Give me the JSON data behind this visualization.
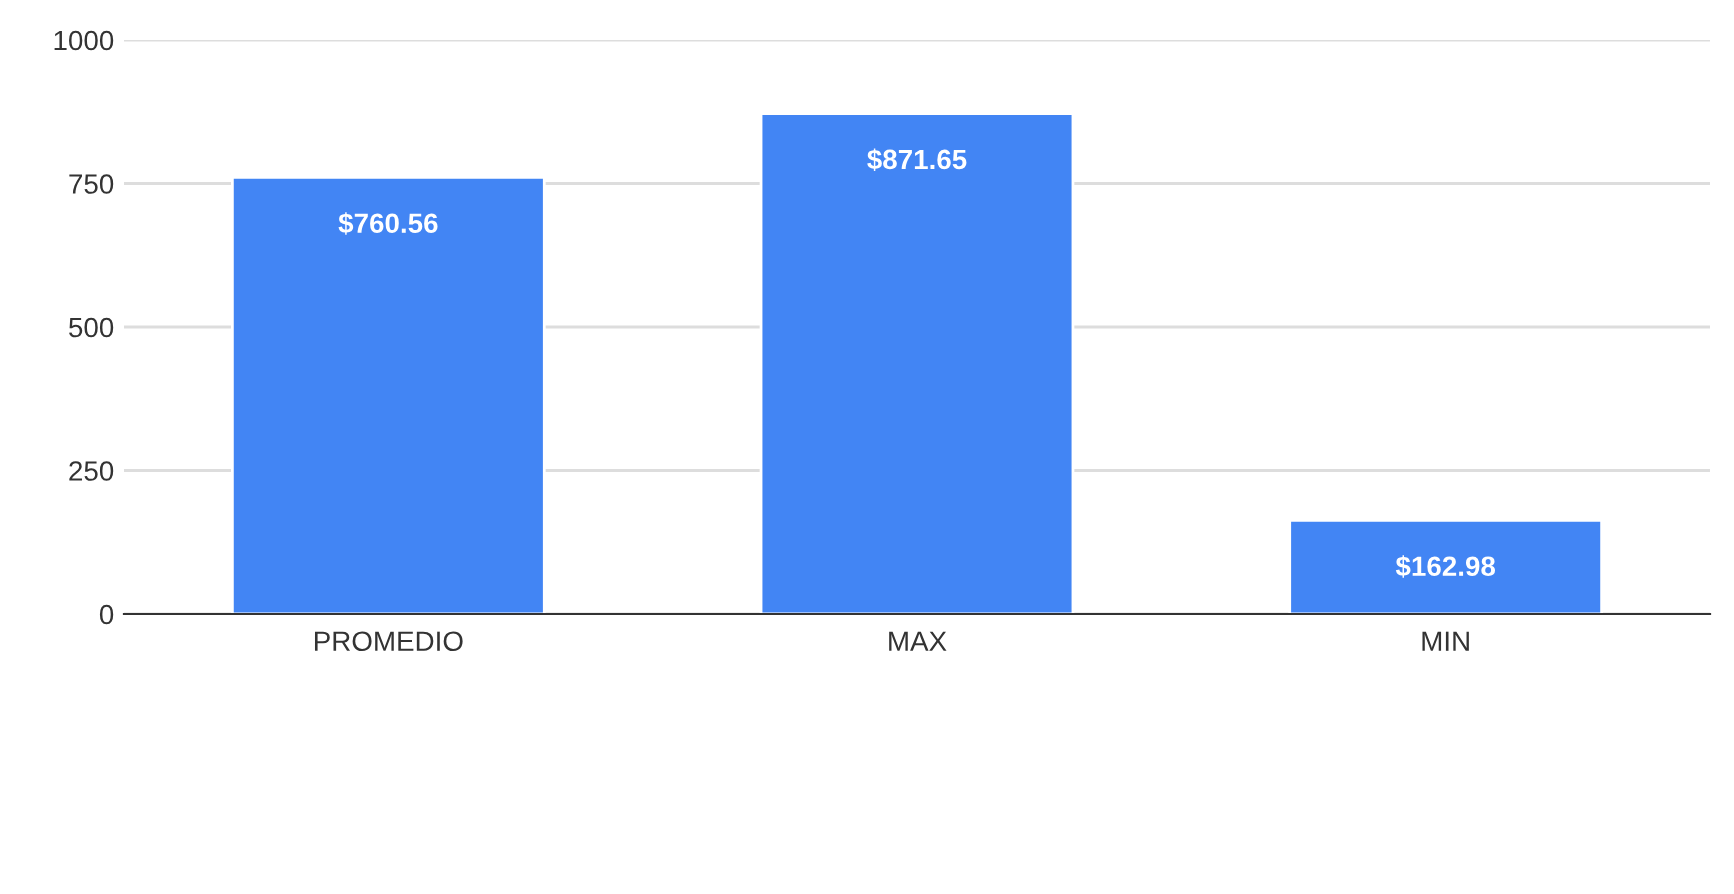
{
  "chart_data": {
    "type": "bar",
    "categories": [
      "PROMEDIO",
      "MAX",
      "MIN"
    ],
    "values": [
      760.56,
      871.65,
      162.98
    ],
    "value_labels": [
      "$760.56",
      "$871.65",
      "$162.98"
    ],
    "color": "#4285f4",
    "ylim": [
      0,
      1000
    ],
    "yticks": [
      0,
      250,
      500,
      750,
      1000
    ],
    "grid": "y",
    "legend": false
  }
}
